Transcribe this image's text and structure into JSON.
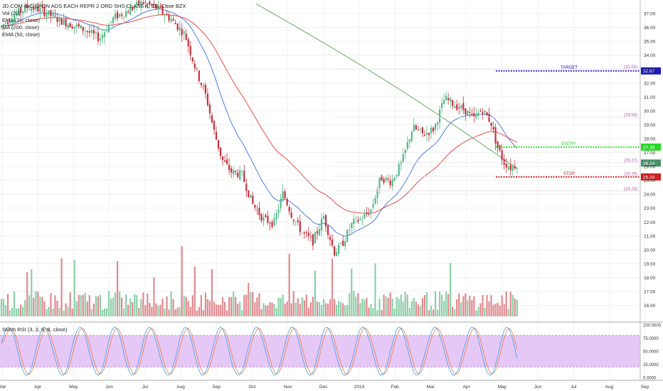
{
  "legend": {
    "symbol_line": "JD.COM INC SPON ADS EACH REPR 2 ORD SHS CLASS A, 1D, Cboe BZX",
    "vol": "Vol (20)",
    "ema20": "EMA (20, close)",
    "ma200": "MA (200, close)",
    "ema50": "EMA (50, close)"
  },
  "indicator_label": "Stoch RSI (3, 3, 8, 8, close)",
  "colors": {
    "up": "#53b987",
    "down": "#c2313b",
    "ema20": "#3f6fd6",
    "ema50": "#e23a3a",
    "ma200": "#5aa050",
    "target": "#1a1ab8",
    "entry": "#26d926",
    "stop": "#cc2222",
    "stoch_band": "#e6c8f7",
    "stoch_k": "#3da0e0",
    "stoch_d": "#ef7a3b"
  },
  "chart_data": {
    "type": "candlestick",
    "y_ticks": [
      "37.00",
      "36.00",
      "35.00",
      "34.00",
      "33.00",
      "32.00",
      "31.00",
      "30.00",
      "29.00",
      "28.00",
      "27.00",
      "26.00",
      "25.00",
      "24.00",
      "23.00",
      "22.00",
      "21.00",
      "20.00",
      "19.00",
      "18.00",
      "17.00",
      "16.00"
    ],
    "ylim": [
      15.5,
      37.6
    ],
    "x_ticks": [
      "Mar",
      "Apr",
      "May",
      "Jun",
      "Jul",
      "Aug",
      "Sep",
      "Oct",
      "Nov",
      "Dec",
      "2019",
      "Feb",
      "Mar",
      "Apr",
      "May",
      "Jun",
      "Jul",
      "Aug",
      "Sep"
    ],
    "levels": [
      {
        "name": "TARGET",
        "label": "TARGET",
        "value": 32.87,
        "value_label": "32.87",
        "color": "#1a1ab8"
      },
      {
        "name": "ENTRY",
        "label": "ENTRY",
        "value": 27.39,
        "value_label": "27.39",
        "color": "#26d926"
      },
      {
        "name": "STOP",
        "label": "STOP",
        "value": 25.24,
        "value_label": "25.24",
        "color": "#cc2222"
      }
    ],
    "fib_levels": [
      {
        "value": 33.0,
        "label": "(33.00)"
      },
      {
        "value": 29.54,
        "label": "(29.54)"
      },
      {
        "value": 26.27,
        "label": "(26.27)"
      },
      {
        "value": 25.29,
        "label": "(25.29)"
      },
      {
        "value": 24.24,
        "label": "(24.24)"
      }
    ],
    "last_price": {
      "value": 26.24,
      "label": "26.24"
    },
    "stoch_ticks": [
      "100.0000",
      "75.0000",
      "50.0000",
      "25.0000",
      "0.0000"
    ],
    "stoch_bands": [
      80,
      20
    ]
  }
}
